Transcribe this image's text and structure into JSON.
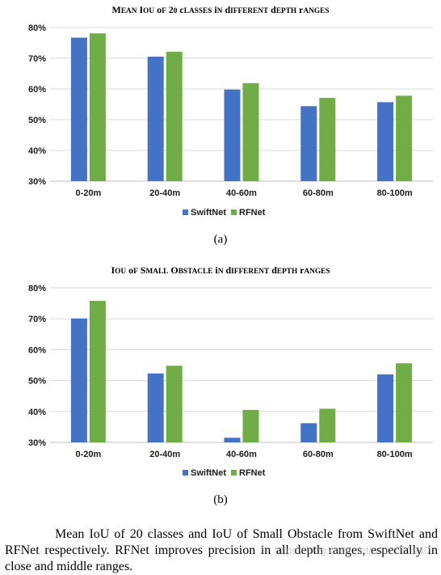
{
  "chart_data": [
    {
      "type": "bar",
      "title": "Mean IoU of 20 classes in different depth ranges",
      "categories": [
        "0-20m",
        "20-40m",
        "40-60m",
        "60-80m",
        "80-100m"
      ],
      "series": [
        {
          "name": "SwiftNet",
          "color": "#4472c4",
          "values": [
            76.7,
            70.5,
            59.8,
            54.4,
            55.7
          ]
        },
        {
          "name": "RFNet",
          "color": "#70ad47",
          "values": [
            78.1,
            72.1,
            61.9,
            57.1,
            57.8
          ]
        }
      ],
      "yticks": [
        "30%",
        "40%",
        "50%",
        "60%",
        "70%",
        "80%"
      ],
      "ylim": [
        30,
        80
      ],
      "grid": true,
      "legend": "bottom"
    },
    {
      "type": "bar",
      "title": "IoU of Small Obstacle in different depth ranges",
      "categories": [
        "0-20m",
        "20-40m",
        "40-60m",
        "60-80m",
        "80-100m"
      ],
      "series": [
        {
          "name": "SwiftNet",
          "color": "#4472c4",
          "values": [
            70.1,
            52.3,
            31.5,
            36.2,
            52.0
          ]
        },
        {
          "name": "RFNet",
          "color": "#70ad47",
          "values": [
            75.8,
            54.8,
            40.5,
            40.9,
            55.6
          ]
        }
      ],
      "yticks": [
        "30%",
        "40%",
        "50%",
        "60%",
        "70%",
        "80%"
      ],
      "ylim": [
        30,
        80
      ],
      "grid": true,
      "legend": "bottom"
    }
  ],
  "labels": {
    "a": "(a)",
    "b": "(b)"
  },
  "caption": "Mean IoU of 20 classes and IoU of Small Obstacle from SwiftNet and RFNet respectively. RFNet improves precision in all depth ranges, especially in close and middle ranges.",
  "watermark": "https://blog.csdn.net/u013531940"
}
